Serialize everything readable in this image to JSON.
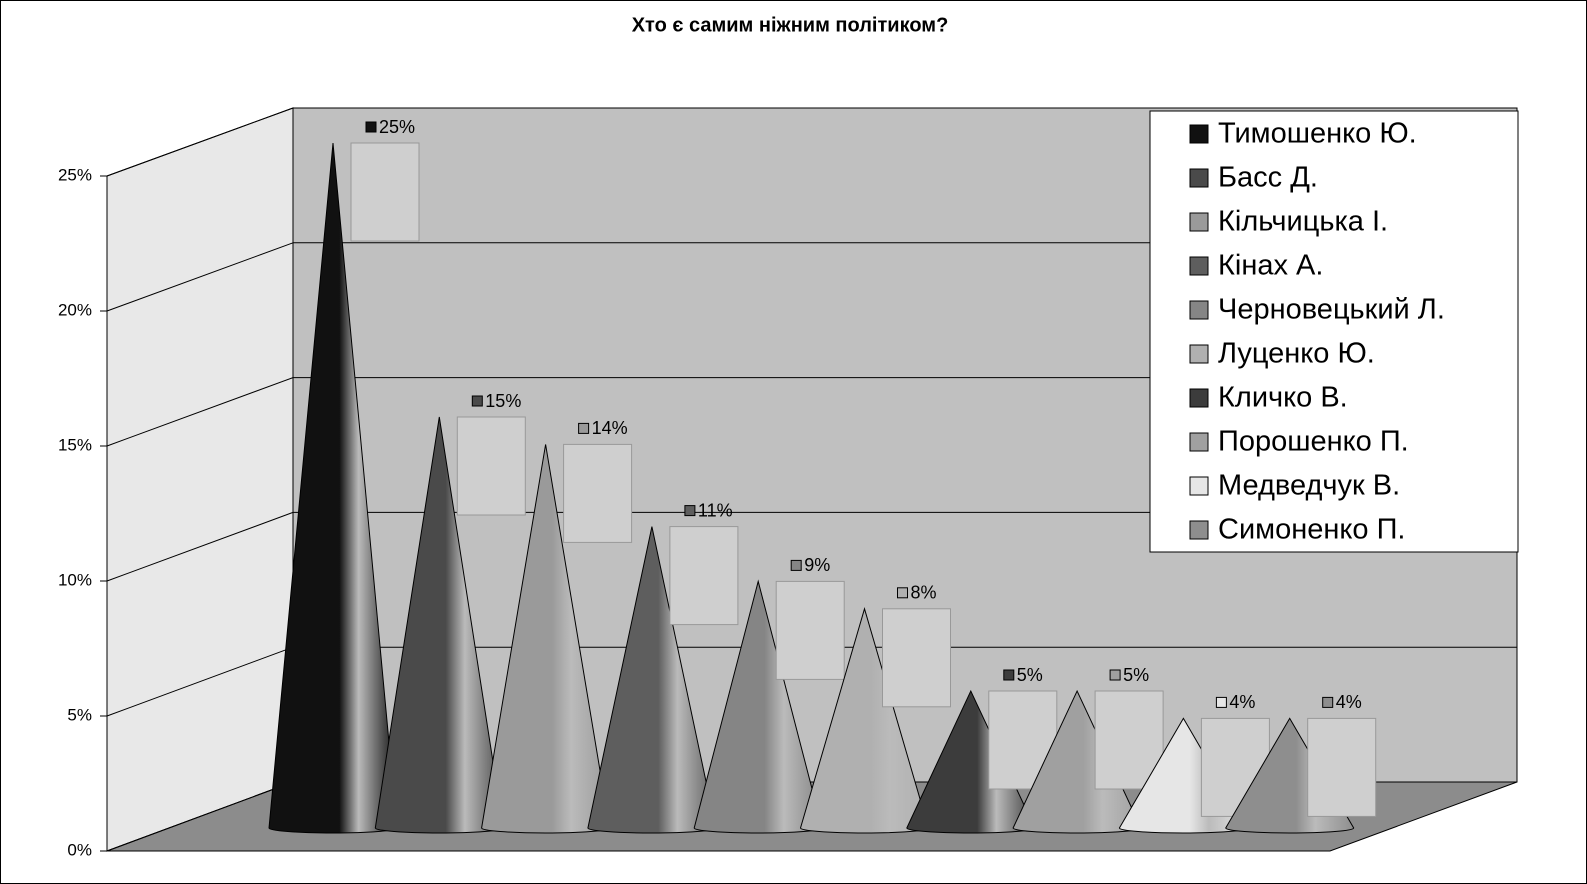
{
  "chart_data": {
    "type": "cone",
    "title": "Хто є самим ніжним політиком?",
    "ylim": [
      0,
      25
    ],
    "yticks": [
      {
        "value": 0,
        "label": "0%"
      },
      {
        "value": 5,
        "label": "5%"
      },
      {
        "value": 10,
        "label": "10%"
      },
      {
        "value": 15,
        "label": "15%"
      },
      {
        "value": 20,
        "label": "20%"
      },
      {
        "value": 25,
        "label": "25%"
      }
    ],
    "grid": true,
    "legend": "top-right",
    "series": [
      {
        "name": "Тимошенко Ю.",
        "color": "#111111",
        "values": [
          25
        ],
        "value_labels": [
          "25%"
        ]
      },
      {
        "name": "Басс Д.",
        "color": "#4a4a4a",
        "values": [
          15
        ],
        "value_labels": [
          "15%"
        ]
      },
      {
        "name": "Кільчицька І.",
        "color": "#9a9a9a",
        "values": [
          14
        ],
        "value_labels": [
          "14%"
        ]
      },
      {
        "name": "Кінах А.",
        "color": "#5e5e5e",
        "values": [
          11
        ],
        "value_labels": [
          "11%"
        ]
      },
      {
        "name": "Черновецький Л.",
        "color": "#858585",
        "values": [
          9
        ],
        "value_labels": [
          "9%"
        ]
      },
      {
        "name": "Луценко Ю.",
        "color": "#b0b0b0",
        "values": [
          8
        ],
        "value_labels": [
          "8%"
        ]
      },
      {
        "name": "Кличко В.",
        "color": "#3c3c3c",
        "values": [
          5
        ],
        "value_labels": [
          "5%"
        ]
      },
      {
        "name": "Порошенко П.",
        "color": "#a0a0a0",
        "values": [
          5
        ],
        "value_labels": [
          "5%"
        ]
      },
      {
        "name": "Медведчук В.",
        "color": "#e6e6e6",
        "values": [
          4
        ],
        "value_labels": [
          "4%"
        ]
      },
      {
        "name": "Симоненко П.",
        "color": "#8e8e8e",
        "values": [
          4
        ],
        "value_labels": [
          "4%"
        ]
      }
    ]
  }
}
